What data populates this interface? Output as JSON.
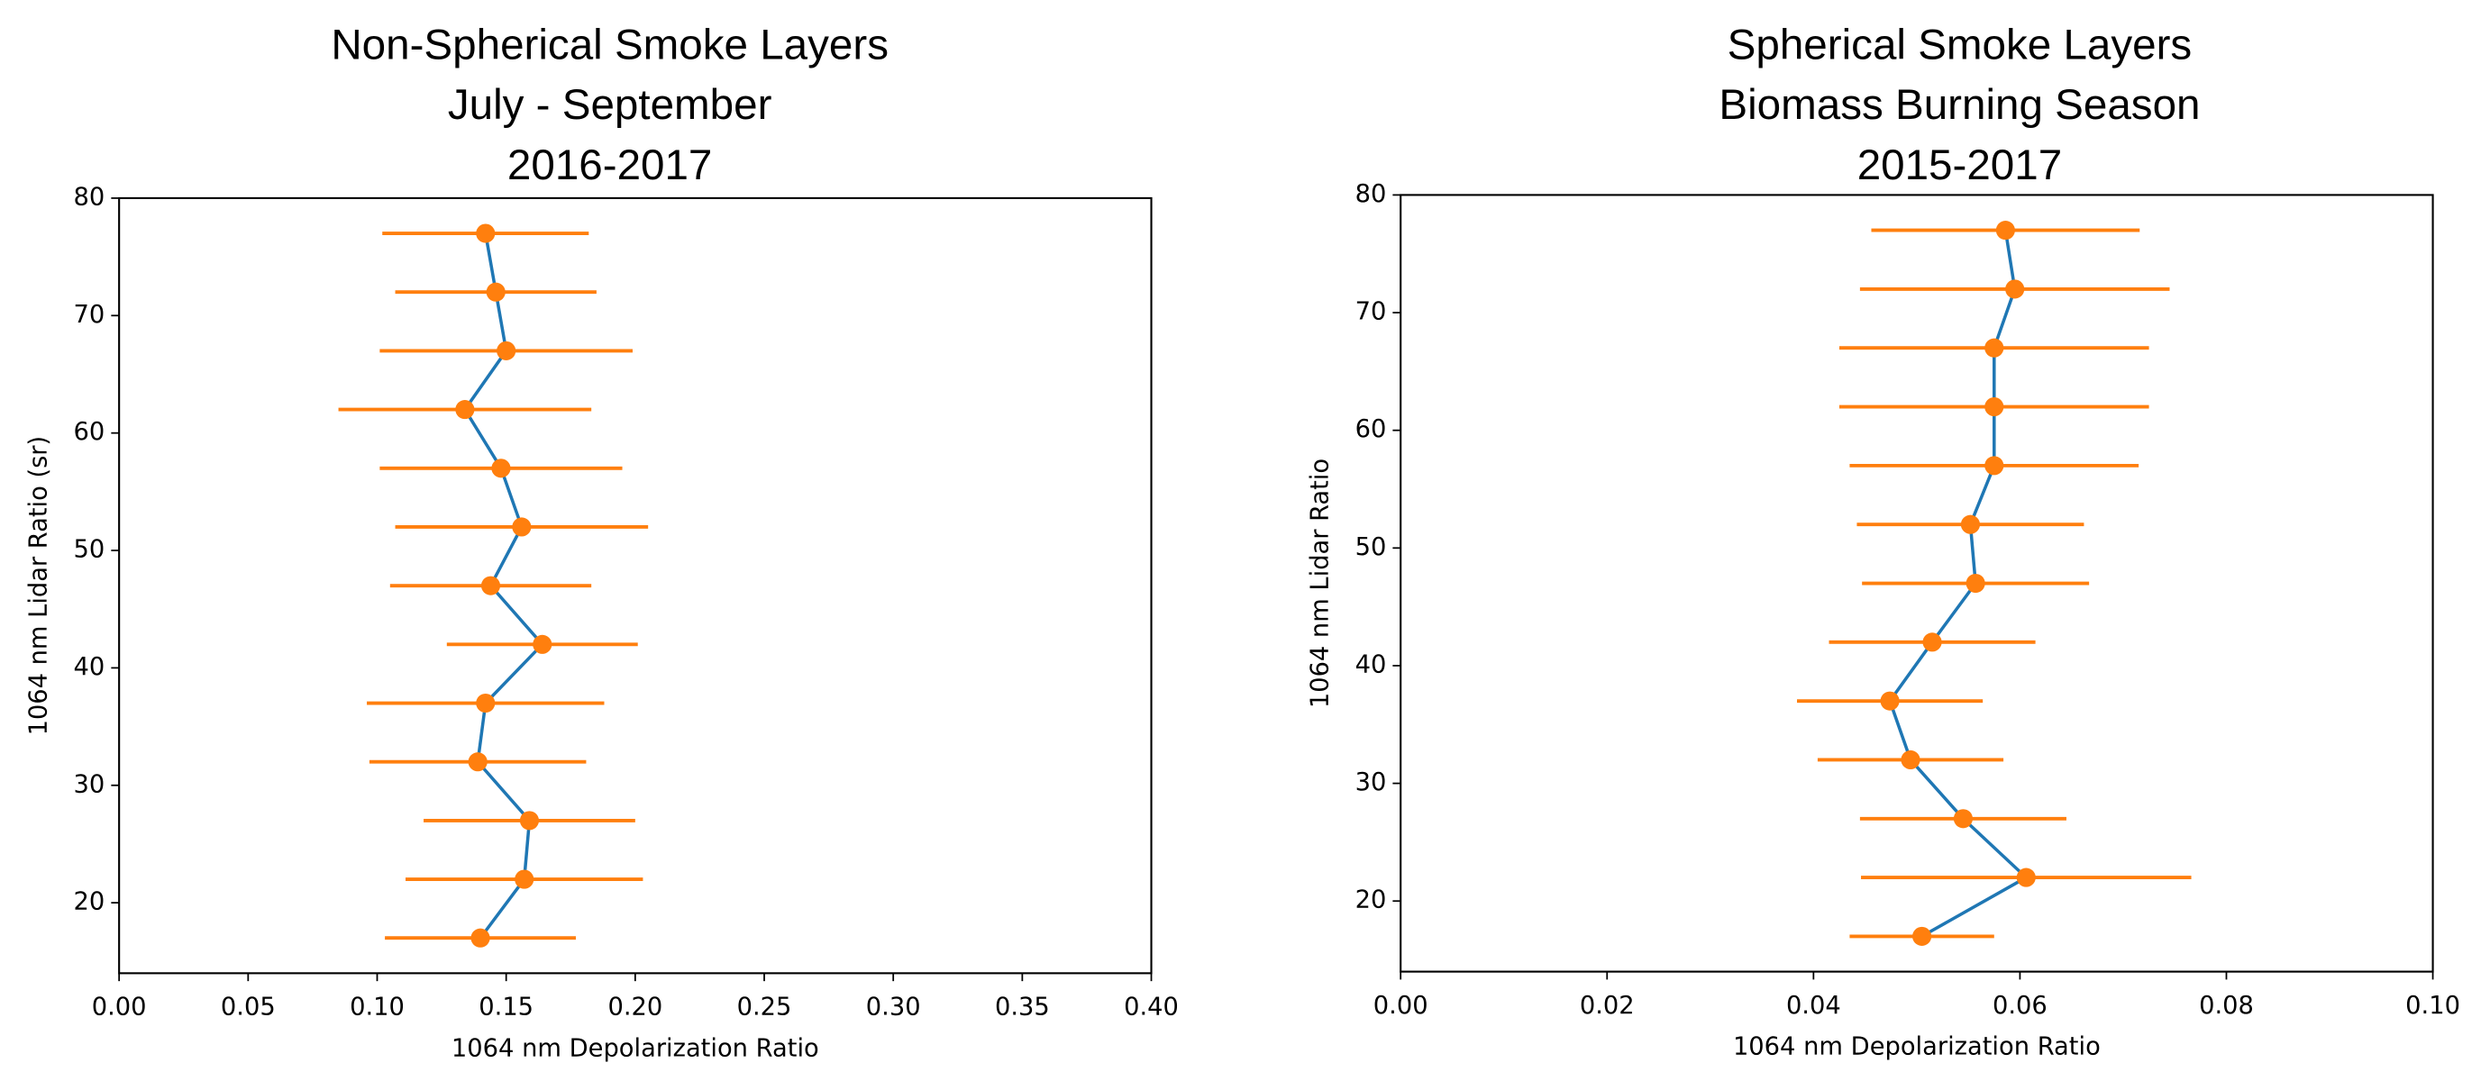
{
  "chart_data": [
    {
      "type": "errorbar-line",
      "title": [
        "Non-Spherical Smoke Layers",
        "July - September",
        "2016-2017"
      ],
      "xlabel": "1064 nm Depolarization Ratio",
      "ylabel": "1064 nm Lidar Ratio (sr)",
      "xlim": [
        0,
        0.4
      ],
      "ylim": [
        14,
        80
      ],
      "xticks": [
        {
          "value": 0,
          "label": "0.00"
        },
        {
          "value": 0.05,
          "label": "0.05"
        },
        {
          "value": 0.1,
          "label": "0.10"
        },
        {
          "value": 0.15,
          "label": "0.15"
        },
        {
          "value": 0.2,
          "label": "0.20"
        },
        {
          "value": 0.25,
          "label": "0.25"
        },
        {
          "value": 0.3,
          "label": "0.30"
        },
        {
          "value": 0.35,
          "label": "0.35"
        },
        {
          "value": 0.4,
          "label": "0.40"
        }
      ],
      "yticks": [
        20,
        30,
        40,
        50,
        60,
        70,
        80
      ],
      "line_color": "#1f77b4",
      "marker_color": "#ff7f0e",
      "y": [
        77,
        72,
        67,
        62,
        57,
        52,
        47,
        42,
        37,
        32,
        27,
        22,
        17
      ],
      "x": [
        0.142,
        0.146,
        0.15,
        0.134,
        0.148,
        0.156,
        0.144,
        0.164,
        0.142,
        0.139,
        0.159,
        0.157,
        0.14
      ],
      "xerr": [
        0.04,
        0.039,
        0.049,
        0.049,
        0.047,
        0.049,
        0.039,
        0.037,
        0.046,
        0.042,
        0.041,
        0.046,
        0.037
      ]
    },
    {
      "type": "errorbar-line",
      "title": [
        "Spherical Smoke Layers",
        "Biomass Burning Season",
        "2015-2017"
      ],
      "xlabel": "1064 nm Depolarization Ratio",
      "ylabel": "1064 nm Lidar Ratio",
      "xlim": [
        0,
        0.1
      ],
      "ylim": [
        14,
        80
      ],
      "xticks": [
        {
          "value": 0,
          "label": "0.00"
        },
        {
          "value": 0.02,
          "label": "0.02"
        },
        {
          "value": 0.04,
          "label": "0.04"
        },
        {
          "value": 0.06,
          "label": "0.06"
        },
        {
          "value": 0.08,
          "label": "0.08"
        },
        {
          "value": 0.1,
          "label": "0.10"
        }
      ],
      "yticks": [
        20,
        30,
        40,
        50,
        60,
        70,
        80
      ],
      "line_color": "#1f77b4",
      "marker_color": "#ff7f0e",
      "y": [
        77,
        72,
        67,
        62,
        57,
        52,
        47,
        42,
        37,
        32,
        27,
        22,
        17
      ],
      "x": [
        0.0586,
        0.0595,
        0.0575,
        0.0575,
        0.0575,
        0.0552,
        0.0557,
        0.0515,
        0.0474,
        0.0494,
        0.0545,
        0.0606,
        0.0505
      ],
      "xerr": [
        0.013,
        0.015,
        0.015,
        0.015,
        0.014,
        0.011,
        0.011,
        0.01,
        0.009,
        0.009,
        0.01,
        0.016,
        0.007
      ]
    }
  ]
}
